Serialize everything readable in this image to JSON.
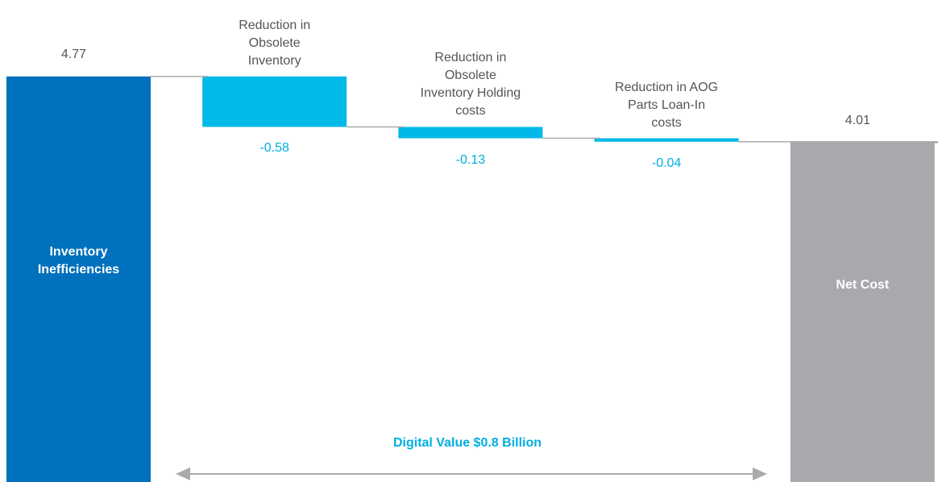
{
  "chart_data": {
    "type": "waterfall",
    "categories": [
      "Inventory Inefficiencies",
      "Reduction in Obsolete Inventory",
      "Reduction in Obsolete Inventory Holding costs",
      "Reduction in AOG Parts Loan-In costs",
      "Net Cost"
    ],
    "values": [
      4.77,
      -0.58,
      -0.13,
      -0.04,
      4.01
    ],
    "measure": [
      "absolute",
      "relative",
      "relative",
      "relative",
      "total"
    ],
    "colors": [
      "#0071bc",
      "#00b9e8",
      "#00b9e8",
      "#00b9e8",
      "#a7a9ac"
    ],
    "annotation": "Digital Value $0.8 Billion"
  }
}
